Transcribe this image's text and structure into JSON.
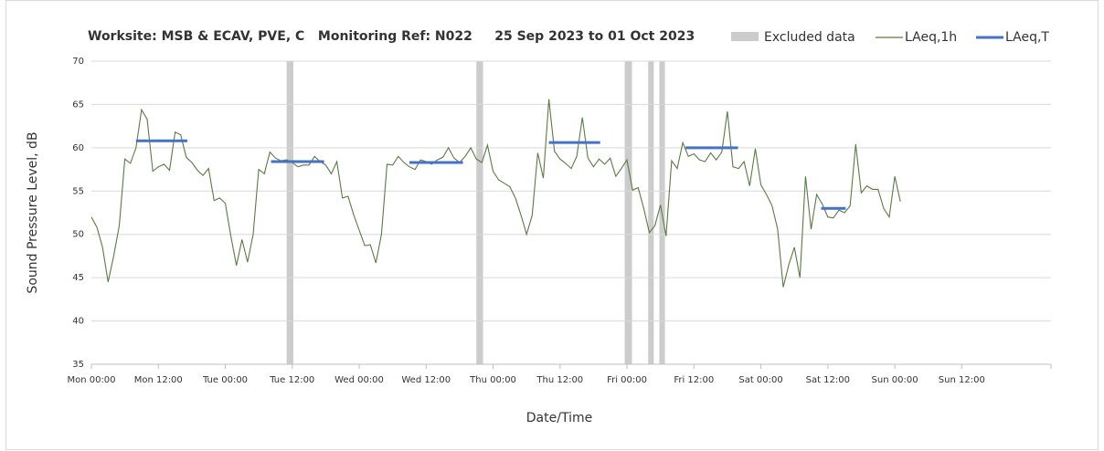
{
  "chart_data": {
    "type": "line",
    "title": "Worksite: MSB & ECAV, PVE, C   Monitoring Ref: N022     25 Sep 2023 to 01 Oct 2023",
    "xlabel": "Date/Time",
    "ylabel": "Sound Pressure Level, dB",
    "xlim": [
      0,
      172
    ],
    "xticks": [
      {
        "value": 0,
        "label": "Mon 00:00"
      },
      {
        "value": 12,
        "label": "Mon 12:00"
      },
      {
        "value": 24,
        "label": "Tue 00:00"
      },
      {
        "value": 36,
        "label": "Tue 12:00"
      },
      {
        "value": 48,
        "label": "Wed 00:00"
      },
      {
        "value": 60,
        "label": "Wed 12:00"
      },
      {
        "value": 72,
        "label": "Thu 00:00"
      },
      {
        "value": 84,
        "label": "Thu 12:00"
      },
      {
        "value": 96,
        "label": "Fri 00:00"
      },
      {
        "value": 108,
        "label": "Fri 12:00"
      },
      {
        "value": 120,
        "label": "Sat 00:00"
      },
      {
        "value": 132,
        "label": "Sat 12:00"
      },
      {
        "value": 144,
        "label": "Sun 00:00"
      },
      {
        "value": 156,
        "label": "Sun 12:00"
      }
    ],
    "ylim": [
      35,
      70
    ],
    "yticks": [
      35,
      40,
      45,
      50,
      55,
      60,
      65,
      70
    ],
    "grid": true,
    "excluded": {
      "name": "Excluded data",
      "color": "#cccccc",
      "ranges": [
        [
          35,
          36.2
        ],
        [
          69,
          70.2
        ],
        [
          95.6,
          96.9
        ],
        [
          99.8,
          100.8
        ],
        [
          101.8,
          102.8
        ]
      ]
    },
    "x": [
      0,
      1,
      2,
      3,
      4,
      5,
      6,
      7,
      8,
      9,
      10,
      11,
      12,
      13,
      14,
      15,
      16,
      17,
      18,
      19,
      20,
      21,
      22,
      23,
      24,
      25,
      26,
      27,
      28,
      29,
      30,
      31,
      32,
      33,
      34,
      35,
      36,
      37,
      38,
      39,
      40,
      41,
      42,
      43,
      44,
      45,
      46,
      47,
      48,
      49,
      50,
      51,
      52,
      53,
      54,
      55,
      56,
      57,
      58,
      59,
      60,
      61,
      62,
      63,
      64,
      65,
      66,
      67,
      68,
      69,
      70,
      71,
      72,
      73,
      74,
      75,
      76,
      77,
      78,
      79,
      80,
      81,
      82,
      83,
      84,
      85,
      86,
      87,
      88,
      89,
      90,
      91,
      92,
      93,
      94,
      95,
      96,
      97,
      98,
      99,
      100,
      101,
      102,
      103,
      104,
      105,
      106,
      107,
      108,
      109,
      110,
      111,
      112,
      113,
      114,
      115,
      116,
      117,
      118,
      119,
      120,
      121,
      122,
      123,
      124,
      125,
      126,
      127,
      128,
      129,
      130,
      131,
      132,
      133,
      134,
      135,
      136,
      137,
      138,
      139,
      140,
      141,
      142,
      143,
      144,
      145
    ],
    "series": [
      {
        "name": "LAeq,1h",
        "color": "#5b7a45",
        "values": [
          52,
          50.8,
          48.5,
          44.5,
          47.5,
          51,
          58.7,
          58.2,
          60,
          64.4,
          63.3,
          57.3,
          57.8,
          58.1,
          57.4,
          61.8,
          61.5,
          58.9,
          58.3,
          57.4,
          56.8,
          57.6,
          53.9,
          54.2,
          53.6,
          49.8,
          46.4,
          49.4,
          46.8,
          50,
          57.5,
          57,
          59.5,
          58.8,
          58.5,
          58.6,
          58.3,
          57.8,
          58,
          58,
          59,
          58.4,
          58,
          57,
          58.4,
          54.2,
          54.4,
          52.3,
          50.5,
          48.7,
          48.8,
          46.7,
          50,
          58.1,
          58,
          59,
          58.3,
          57.8,
          57.5,
          58.6,
          58.4,
          58.1,
          58.6,
          58.9,
          60,
          58.8,
          58.3,
          59,
          60,
          58.7,
          58.3,
          60.3,
          57.3,
          56.3,
          55.9,
          55.5,
          54.2,
          52.2,
          50,
          52.2,
          59.4,
          56.5,
          65.6,
          59.6,
          58.7,
          58.2,
          57.6,
          59,
          63.5,
          58.8,
          57.8,
          58.7,
          58.1,
          58.8,
          56.7,
          57.6,
          58.6,
          55.1,
          55.4,
          53,
          50.2,
          51,
          53.4,
          49.8,
          58.5,
          57.6,
          60.6,
          59,
          59.3,
          58.6,
          58.4,
          59.4,
          58.6,
          59.5,
          64.2,
          57.8,
          57.6,
          58.4,
          55.6,
          59.9,
          55.7,
          54.6,
          53.3,
          50.6,
          43.9,
          46.5,
          48.5,
          45,
          56.7,
          50.6,
          54.6,
          53.5,
          52,
          51.9,
          52.8,
          52.5,
          53.3,
          60.4,
          54.8,
          55.6,
          55.2,
          55.2,
          53,
          52,
          56.7,
          53.8
        ]
      },
      {
        "name": "LAeq,T",
        "color": "#4472c4",
        "segments": [
          {
            "x": [
              8,
              17.2
            ],
            "value": 60.8
          },
          {
            "x": [
              32.2,
              41.7
            ],
            "value": 58.4
          },
          {
            "x": [
              57,
              66.6
            ],
            "value": 58.3
          },
          {
            "x": [
              82,
              91.2
            ],
            "value": 60.6
          },
          {
            "x": [
              106.5,
              115.9
            ],
            "value": 60
          },
          {
            "x": [
              130.8,
              135.2
            ],
            "value": 53
          }
        ]
      }
    ]
  }
}
